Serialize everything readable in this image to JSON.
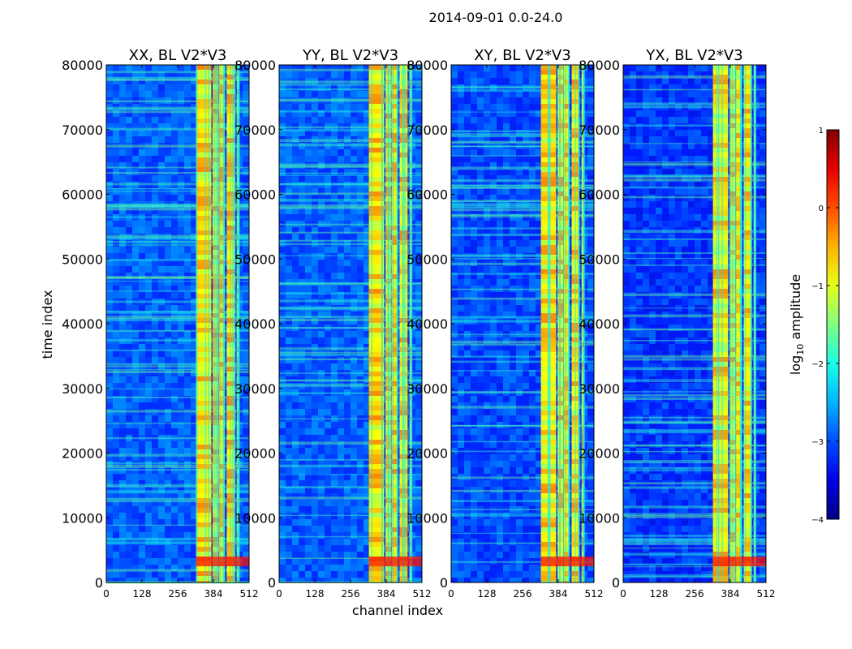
{
  "figure": {
    "suptitle": "2014-09-01 0.0-24.0",
    "xlabel": "channel index",
    "ylabel": "time index"
  },
  "colormap": "jet",
  "colorbar": {
    "label_prefix": "log",
    "label_sub": "10",
    "label_suffix": " amplitude",
    "range": [
      -4,
      1
    ],
    "ticks": [
      1,
      0,
      -1,
      -2,
      -3,
      -4
    ],
    "tick_labels": [
      "1",
      "0",
      "−1",
      "−2",
      "−3",
      "−4"
    ]
  },
  "chart_data": [
    {
      "type": "heatmap",
      "title": "XX, BL V2*V3",
      "xlim": [
        0,
        512
      ],
      "ylim": [
        0,
        80000
      ],
      "xticks": [
        "0",
        "128",
        "256",
        "384",
        "512"
      ],
      "yticks": [
        "0",
        "10000",
        "20000",
        "30000",
        "40000",
        "50000",
        "60000",
        "70000",
        "80000"
      ],
      "xlabel": "",
      "ylabel": "time index",
      "background_level": -2.9,
      "bright_channel_bands": [
        [
          322,
          376
        ],
        [
          382,
          403
        ],
        [
          405,
          424
        ],
        [
          432,
          460
        ],
        [
          468,
          476
        ]
      ],
      "band_level": -0.9
    },
    {
      "type": "heatmap",
      "title": "YY, BL V2*V3",
      "xlim": [
        0,
        512
      ],
      "ylim": [
        0,
        80000
      ],
      "xticks": [
        "0",
        "128",
        "256",
        "384",
        "512"
      ],
      "yticks": [
        "0",
        "10000",
        "20000",
        "30000",
        "40000",
        "50000",
        "60000",
        "70000",
        "80000"
      ],
      "xlabel": "channel index",
      "ylabel": "",
      "background_level": -2.9,
      "bright_channel_bands": [
        [
          322,
          376
        ],
        [
          382,
          403
        ],
        [
          405,
          424
        ],
        [
          432,
          460
        ],
        [
          468,
          476
        ]
      ],
      "band_level": -0.9
    },
    {
      "type": "heatmap",
      "title": "XY, BL V2*V3",
      "xlim": [
        0,
        512
      ],
      "ylim": [
        0,
        80000
      ],
      "xticks": [
        "0",
        "128",
        "256",
        "384",
        "512"
      ],
      "yticks": [
        "0",
        "10000",
        "20000",
        "30000",
        "40000",
        "50000",
        "60000",
        "70000",
        "80000"
      ],
      "xlabel": "",
      "ylabel": "",
      "background_level": -3.0,
      "bright_channel_bands": [
        [
          322,
          376
        ],
        [
          382,
          403
        ],
        [
          405,
          424
        ],
        [
          432,
          460
        ],
        [
          468,
          476
        ]
      ],
      "band_level": -0.95
    },
    {
      "type": "heatmap",
      "title": "YX, BL V2*V3",
      "xlim": [
        0,
        512
      ],
      "ylim": [
        0,
        80000
      ],
      "xticks": [
        "0",
        "128",
        "256",
        "384",
        "512"
      ],
      "yticks": [
        "0",
        "10000",
        "20000",
        "30000",
        "40000",
        "50000",
        "60000",
        "70000",
        "80000"
      ],
      "xlabel": "",
      "ylabel": "",
      "background_level": -3.1,
      "bright_channel_bands": [
        [
          322,
          376
        ],
        [
          382,
          403
        ],
        [
          405,
          424
        ],
        [
          432,
          460
        ],
        [
          468,
          476
        ]
      ],
      "band_level": -1.0
    }
  ]
}
